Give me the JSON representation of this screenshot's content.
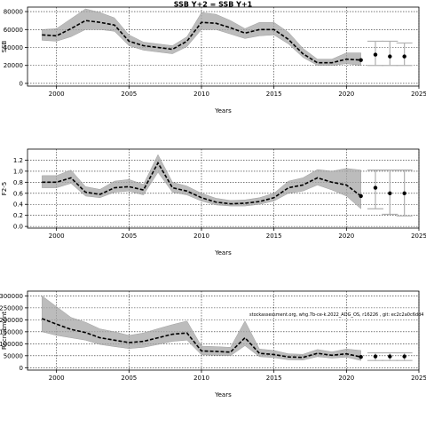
{
  "chart_data": [
    {
      "type": "line",
      "title": "SSB Y+2 = SSB Y+1",
      "xlabel": "Years",
      "ylabel": "SSB",
      "xlim": [
        1998,
        2025
      ],
      "ylim": [
        -3000,
        85000
      ],
      "xticks": [
        2000,
        2005,
        2010,
        2015,
        2020,
        2025
      ],
      "yticks": [
        0,
        20000,
        40000,
        60000,
        80000
      ],
      "ytick_labels": [
        "0",
        "20000",
        "40000",
        "60000",
        "80000"
      ],
      "grid": true,
      "series": [
        {
          "x": [
            1999,
            2000,
            2001,
            2002,
            2003,
            2004,
            2005,
            2006,
            2007,
            2008,
            2009,
            2010,
            2011,
            2012,
            2013,
            2014,
            2015,
            2016,
            2017,
            2018,
            2019,
            2020,
            2021
          ],
          "values": [
            54000,
            53000,
            61000,
            70000,
            68000,
            65000,
            47000,
            42000,
            40000,
            38000,
            47000,
            68000,
            67000,
            62000,
            56000,
            60000,
            60000,
            49000,
            33000,
            23000,
            23000,
            27000,
            26000
          ],
          "low": [
            48000,
            47000,
            52000,
            60000,
            60000,
            58000,
            42000,
            37000,
            35000,
            33000,
            41000,
            60000,
            60000,
            55000,
            50000,
            53000,
            54000,
            44000,
            29000,
            20000,
            20000,
            22000,
            20000
          ],
          "high": [
            60000,
            61000,
            72000,
            83000,
            79000,
            73000,
            54000,
            46000,
            44000,
            42000,
            52000,
            79000,
            77000,
            70000,
            61000,
            68000,
            68000,
            57000,
            39000,
            27000,
            27000,
            34000,
            34000
          ]
        }
      ],
      "projection": {
        "x": [
          2022,
          2023,
          2024
        ],
        "values": [
          32000,
          30000,
          30000
        ],
        "low": [
          20000,
          20000,
          20000
        ],
        "high": [
          47000,
          47000,
          45000
        ]
      }
    },
    {
      "type": "line",
      "title": "",
      "xlabel": "Years",
      "ylabel": "F2-5",
      "xlim": [
        1998,
        2025
      ],
      "ylim": [
        -0.03,
        1.4
      ],
      "xticks": [
        2000,
        2005,
        2010,
        2015,
        2020,
        2025
      ],
      "yticks": [
        0,
        0.2,
        0.4,
        0.6,
        0.8,
        1.0,
        1.2
      ],
      "ytick_labels": [
        "0.0",
        "0.2",
        "0.4",
        "0.6",
        "0.8",
        "1.0",
        "1.2"
      ],
      "grid": true,
      "series": [
        {
          "x": [
            1999,
            2000,
            2001,
            2002,
            2003,
            2004,
            2005,
            2006,
            2007,
            2008,
            2009,
            2010,
            2011,
            2012,
            2013,
            2014,
            2015,
            2016,
            2017,
            2018,
            2019,
            2020,
            2021
          ],
          "values": [
            0.8,
            0.8,
            0.88,
            0.62,
            0.58,
            0.7,
            0.72,
            0.66,
            1.15,
            0.7,
            0.64,
            0.52,
            0.44,
            0.41,
            0.42,
            0.45,
            0.52,
            0.7,
            0.75,
            0.88,
            0.8,
            0.75,
            0.55
          ],
          "low": [
            0.7,
            0.7,
            0.78,
            0.55,
            0.52,
            0.62,
            0.64,
            0.57,
            0.98,
            0.62,
            0.57,
            0.46,
            0.39,
            0.37,
            0.37,
            0.4,
            0.46,
            0.6,
            0.64,
            0.75,
            0.66,
            0.55,
            0.32
          ],
          "high": [
            0.92,
            0.92,
            1.02,
            0.72,
            0.67,
            0.82,
            0.85,
            0.76,
            1.3,
            0.8,
            0.73,
            0.6,
            0.51,
            0.47,
            0.48,
            0.52,
            0.6,
            0.82,
            0.88,
            1.03,
            1.0,
            1.05,
            1.02
          ]
        }
      ],
      "projection": {
        "x": [
          2022,
          2023,
          2024
        ],
        "values": [
          0.7,
          0.6,
          0.6
        ],
        "low": [
          0.32,
          0.22,
          0.19
        ],
        "high": [
          1.02,
          1.02,
          1.02
        ]
      }
    },
    {
      "type": "line",
      "title": "",
      "xlabel": "Years",
      "ylabel": "Recruitment",
      "xlim": [
        1998,
        2025
      ],
      "ylim": [
        -10000,
        320000
      ],
      "xticks": [
        2000,
        2005,
        2010,
        2015,
        2020,
        2025
      ],
      "yticks": [
        0,
        50000,
        100000,
        150000,
        200000,
        250000,
        300000
      ],
      "ytick_labels": [
        "0",
        "50000",
        "100000",
        "150000",
        "200000",
        "250000",
        "300000"
      ],
      "grid": true,
      "annotation": "stockassessment.org, whg.7b-ce-k.2022_ADG_OS, r16226 , git: ec2c2a0c6dd4",
      "series": [
        {
          "x": [
            1999,
            2000,
            2001,
            2002,
            2003,
            2004,
            2005,
            2006,
            2007,
            2008,
            2009,
            2010,
            2011,
            2012,
            2013,
            2014,
            2015,
            2016,
            2017,
            2018,
            2019,
            2020,
            2021
          ],
          "values": [
            205000,
            182000,
            160000,
            147000,
            125000,
            115000,
            105000,
            110000,
            125000,
            140000,
            145000,
            70000,
            68000,
            65000,
            125000,
            60000,
            55000,
            45000,
            43000,
            60000,
            52000,
            58000,
            45000
          ],
          "low": [
            150000,
            135000,
            125000,
            115000,
            97000,
            88000,
            80000,
            85000,
            97000,
            110000,
            115000,
            54000,
            52000,
            50000,
            92000,
            46000,
            42000,
            33000,
            32000,
            46000,
            40000,
            44000,
            30000
          ],
          "high": [
            300000,
            255000,
            210000,
            190000,
            162000,
            150000,
            135000,
            145000,
            163000,
            180000,
            195000,
            90000,
            88000,
            85000,
            195000,
            78000,
            72000,
            58000,
            56000,
            76000,
            66000,
            78000,
            72000
          ]
        }
      ],
      "projection": {
        "x": [
          2022,
          2023,
          2024
        ],
        "values": [
          47000,
          47000,
          47000
        ],
        "low": [
          30000,
          30000,
          30000
        ],
        "high": [
          62000,
          62000,
          62000
        ]
      }
    }
  ]
}
